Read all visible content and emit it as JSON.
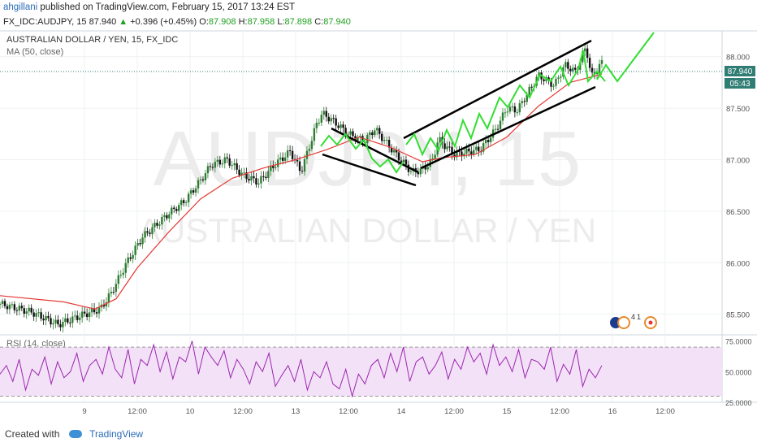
{
  "header": {
    "author": "ahgillani",
    "published": "published on TradingView.com, February 15, 2017 13:24 EST",
    "symbol": "FX_IDC:AUDJPY, 15",
    "last": "87.940",
    "change": "+0.396 (+0.45%)",
    "o_label": "O:",
    "o": "87.908",
    "h_label": "H:",
    "h": "87.958",
    "l_label": "L:",
    "l": "87.898",
    "c_label": "C:",
    "c": "87.940"
  },
  "legend": {
    "title": "AUSTRALIAN DOLLAR / YEN, 15, FX_IDC",
    "ma": "MA (50, close)",
    "rsi": "RSI (14, close)"
  },
  "watermark": {
    "symbol": "AUDJPY, 15",
    "name": "AUSTRALIAN DOLLAR / YEN"
  },
  "price_badges": {
    "last": "87.940",
    "countdown": "05:43"
  },
  "event_labels": {
    "count": "4",
    "suffix": "1"
  },
  "footer": {
    "created": "Created with",
    "brand": "TradingView"
  },
  "colors": {
    "candle_up": "#2e7d32",
    "candle_down": "#111111",
    "ma": "#e53935",
    "trendline": "#000000",
    "projection": "#33dd33",
    "rsi": "#9c27b0",
    "rsi_band": "#f3e1f7",
    "price_badge": "#2f7d74"
  },
  "chart_data": [
    {
      "type": "candlestick",
      "title": "AUSTRALIAN DOLLAR / YEN, 15, FX_IDC",
      "ylim": [
        85.3,
        88.25
      ],
      "y_ticks": [
        "88.000",
        "87.500",
        "87.000",
        "86.500",
        "86.000",
        "85.500"
      ],
      "x_ticks": [
        "9",
        "12:00",
        "10",
        "12:00",
        "13",
        "12:00",
        "14",
        "12:00",
        "15",
        "12:00",
        "16",
        "12:00"
      ],
      "x_range_days": [
        0,
        10
      ],
      "x_tick_days": [
        0.8,
        1.3,
        1.8,
        2.3,
        2.8,
        3.3,
        3.8,
        4.3,
        4.8,
        5.3,
        5.8,
        6.3
      ],
      "price_path": [
        [
          0.0,
          85.6
        ],
        [
          0.3,
          85.52
        ],
        [
          0.55,
          85.4
        ],
        [
          0.8,
          85.5
        ],
        [
          0.95,
          85.55
        ],
        [
          1.05,
          85.7
        ],
        [
          1.2,
          86.0
        ],
        [
          1.35,
          86.25
        ],
        [
          1.6,
          86.48
        ],
        [
          1.75,
          86.6
        ],
        [
          1.9,
          86.8
        ],
        [
          2.0,
          86.95
        ],
        [
          2.15,
          87.0
        ],
        [
          2.3,
          86.85
        ],
        [
          2.45,
          86.78
        ],
        [
          2.6,
          86.95
        ],
        [
          2.75,
          87.08
        ],
        [
          2.85,
          86.88
        ],
        [
          3.0,
          87.35
        ],
        [
          3.05,
          87.45
        ],
        [
          3.15,
          87.38
        ],
        [
          3.3,
          87.25
        ],
        [
          3.45,
          87.18
        ],
        [
          3.55,
          87.3
        ],
        [
          3.75,
          87.05
        ],
        [
          3.9,
          86.88
        ],
        [
          4.0,
          86.9
        ],
        [
          4.1,
          87.0
        ],
        [
          4.15,
          87.2
        ],
        [
          4.3,
          87.05
        ],
        [
          4.45,
          87.08
        ],
        [
          4.55,
          87.1
        ],
        [
          4.7,
          87.3
        ],
        [
          4.8,
          87.5
        ],
        [
          4.9,
          87.48
        ],
        [
          5.0,
          87.65
        ],
        [
          5.1,
          87.82
        ],
        [
          5.25,
          87.72
        ],
        [
          5.35,
          87.92
        ],
        [
          5.45,
          87.85
        ],
        [
          5.55,
          88.1
        ],
        [
          5.6,
          87.8
        ],
        [
          5.7,
          87.94
        ]
      ],
      "ma_path": [
        [
          0.0,
          85.68
        ],
        [
          0.6,
          85.62
        ],
        [
          0.9,
          85.55
        ],
        [
          1.1,
          85.65
        ],
        [
          1.3,
          85.95
        ],
        [
          1.6,
          86.3
        ],
        [
          1.9,
          86.62
        ],
        [
          2.2,
          86.82
        ],
        [
          2.5,
          86.92
        ],
        [
          2.8,
          87.0
        ],
        [
          3.1,
          87.1
        ],
        [
          3.4,
          87.22
        ],
        [
          3.7,
          87.12
        ],
        [
          4.0,
          86.98
        ],
        [
          4.2,
          87.02
        ],
        [
          4.5,
          87.05
        ],
        [
          4.8,
          87.22
        ],
        [
          5.1,
          87.52
        ],
        [
          5.4,
          87.75
        ],
        [
          5.7,
          87.83
        ]
      ]
    },
    {
      "type": "line",
      "title": "RSI (14, close)",
      "ylim": [
        25,
        80
      ],
      "y_ticks": [
        "75.0000",
        "50.0000",
        "25.0000"
      ],
      "bands": [
        30,
        70
      ],
      "values": [
        48,
        55,
        42,
        60,
        35,
        52,
        47,
        62,
        40,
        58,
        45,
        50,
        65,
        42,
        55,
        60,
        48,
        70,
        52,
        45,
        68,
        40,
        60,
        55,
        72,
        50,
        66,
        44,
        62,
        58,
        75,
        48,
        70,
        62,
        55,
        67,
        45,
        60,
        52,
        40,
        58,
        50,
        65,
        38,
        47,
        55,
        42,
        60,
        35,
        50,
        45,
        58,
        40,
        36,
        52,
        30,
        48,
        40,
        55,
        60,
        45,
        65,
        50,
        70,
        42,
        58,
        62,
        48,
        55,
        66,
        44,
        60,
        52,
        70,
        58,
        65,
        48,
        72,
        55,
        62,
        50,
        68,
        45,
        60,
        58,
        52,
        70,
        42,
        56,
        48,
        68,
        38,
        52,
        45,
        55
      ]
    }
  ]
}
